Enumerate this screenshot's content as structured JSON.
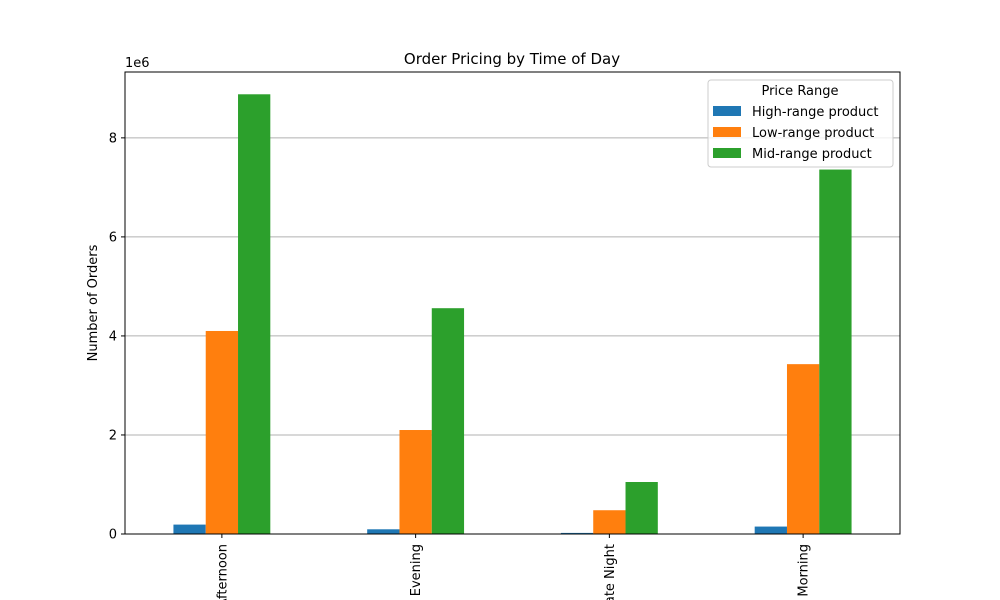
{
  "chart_data": {
    "type": "bar",
    "title": "Order Pricing by Time of Day",
    "xlabel": "",
    "ylabel": "Number of Orders",
    "y_offset_label": "1e6",
    "y_scale": 1000000,
    "ylim": [
      0,
      9330000
    ],
    "yticks": [
      0,
      2,
      4,
      6,
      8
    ],
    "grid": "y",
    "categories": [
      "Afternoon",
      "Evening",
      "Late Night",
      "Morning"
    ],
    "series": [
      {
        "name": "High-range product",
        "color": "#1f77b4",
        "values": [
          190000,
          95000,
          22000,
          150000
        ]
      },
      {
        "name": "Low-range product",
        "color": "#ff7f0e",
        "values": [
          4100000,
          2100000,
          480000,
          3430000
        ]
      },
      {
        "name": "Mid-range product",
        "color": "#2ca02c",
        "values": [
          8880000,
          4560000,
          1050000,
          7360000
        ]
      }
    ],
    "legend": {
      "title": "Price Range",
      "placement": "top-right"
    }
  }
}
